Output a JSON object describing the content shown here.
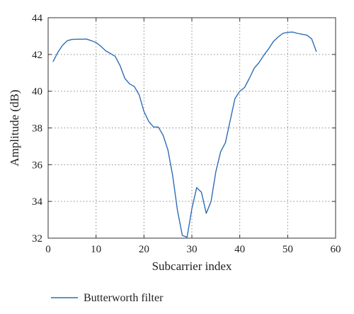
{
  "chart_data": {
    "type": "line",
    "title": "",
    "xlabel": "Subcarrier index",
    "ylabel": "Amplitude (dB)",
    "xlim": [
      0,
      60
    ],
    "ylim": [
      32,
      44
    ],
    "xticks": [
      0,
      10,
      20,
      30,
      40,
      50,
      60
    ],
    "yticks": [
      32,
      34,
      36,
      38,
      40,
      42,
      44
    ],
    "grid": true,
    "grid_style": "dotted",
    "legend_position": "bottom-left-below",
    "colors": {
      "series": "#2f6db5",
      "axis": "#333333",
      "grid": "#8a8a8a"
    },
    "series": [
      {
        "name": "Butterworth filter",
        "x": [
          1,
          2,
          3,
          4,
          5,
          6,
          7,
          8,
          9,
          10,
          11,
          12,
          13,
          14,
          15,
          16,
          17,
          18,
          19,
          20,
          21,
          22,
          23,
          24,
          25,
          26,
          27,
          28,
          29,
          30,
          31,
          32,
          33,
          34,
          35,
          36,
          37,
          38,
          39,
          40,
          41,
          42,
          43,
          44,
          45,
          46,
          47,
          48,
          49,
          50,
          51,
          52,
          53,
          54,
          55,
          56
        ],
        "y": [
          41.6,
          42.1,
          42.5,
          42.75,
          42.82,
          42.83,
          42.83,
          42.84,
          42.75,
          42.65,
          42.45,
          42.2,
          42.05,
          41.9,
          41.4,
          40.7,
          40.4,
          40.25,
          39.8,
          38.9,
          38.35,
          38.05,
          38.05,
          37.6,
          36.8,
          35.4,
          33.5,
          32.15,
          32.05,
          33.6,
          34.75,
          34.5,
          33.35,
          34.0,
          35.6,
          36.7,
          37.2,
          38.4,
          39.6,
          40.0,
          40.2,
          40.7,
          41.25,
          41.55,
          41.95,
          42.3,
          42.7,
          42.95,
          43.15,
          43.2,
          43.22,
          43.15,
          43.1,
          43.05,
          42.85,
          42.15
        ]
      }
    ]
  }
}
